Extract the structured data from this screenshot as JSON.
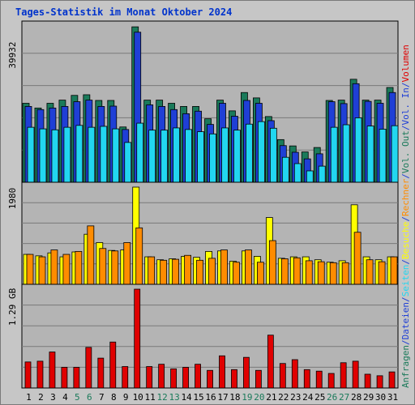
{
  "title": "Tages-Statistik im Monat Oktober 2024",
  "chart_data": [
    {
      "type": "bar",
      "panel": "top",
      "ytick_label": "39932",
      "ymax": 50000,
      "categories": [
        "1",
        "2",
        "3",
        "4",
        "5",
        "6",
        "7",
        "8",
        "9",
        "10",
        "11",
        "12",
        "13",
        "14",
        "15",
        "16",
        "17",
        "18",
        "19",
        "20",
        "21",
        "22",
        "23",
        "24",
        "25",
        "26",
        "27",
        "28",
        "29",
        "30",
        "31"
      ],
      "weekend_days": [
        "5",
        "6",
        "12",
        "13",
        "19",
        "20",
        "26",
        "27"
      ],
      "series": [
        {
          "name": "Anfragen",
          "color": "#1a7a5a",
          "values": [
            25000,
            23500,
            25000,
            26000,
            27500,
            27700,
            25900,
            25900,
            17500,
            49200,
            26000,
            26000,
            25000,
            24000,
            24000,
            20100,
            26000,
            22600,
            28400,
            26700,
            20800,
            13500,
            11500,
            9600,
            11000,
            25900,
            26000,
            32600,
            26000,
            26000,
            30000
          ]
        },
        {
          "name": "Dateien",
          "color": "#1f3fd6",
          "values": [
            24000,
            23000,
            23500,
            24000,
            25500,
            26000,
            24000,
            24100,
            16700,
            47500,
            24500,
            24000,
            23000,
            21700,
            22500,
            18300,
            25000,
            20900,
            25900,
            25000,
            19500,
            11600,
            9500,
            7400,
            9000,
            25500,
            24900,
            31200,
            25600,
            25000,
            28400
          ]
        },
        {
          "name": "Seiten",
          "color": "#22d6f0",
          "values": [
            17400,
            16900,
            16600,
            17400,
            18000,
            17400,
            17700,
            16900,
            12600,
            18700,
            16500,
            16500,
            17200,
            16700,
            16000,
            15300,
            17200,
            16500,
            18400,
            19200,
            17100,
            7900,
            5900,
            3600,
            5100,
            17400,
            18200,
            20400,
            17800,
            16800,
            17900
          ]
        },
        {
          "name": "Besuche",
          "color": "#ffff00",
          "values": [
            610,
            580,
            640,
            560,
            660,
            1020,
            850,
            690,
            700,
            1980,
            560,
            500,
            520,
            570,
            550,
            670,
            680,
            470,
            680,
            570,
            1360,
            530,
            560,
            560,
            500,
            450,
            480,
            1620,
            560,
            500,
            560
          ]
        },
        {
          "name": "Rechner",
          "color": "#ff8c00",
          "values": [
            610,
            560,
            700,
            610,
            670,
            1190,
            730,
            680,
            850,
            1150,
            560,
            490,
            510,
            590,
            490,
            530,
            700,
            450,
            700,
            450,
            890,
            520,
            540,
            480,
            460,
            440,
            440,
            1060,
            500,
            460,
            560
          ]
        }
      ],
      "side_labels": [
        {
          "text": "Anfragen",
          "color": "#1a7a5a"
        },
        {
          "text": "/",
          "color": "#1f3fd6"
        },
        {
          "text": "Dateien",
          "color": "#1f3fd6"
        },
        {
          "text": "/",
          "color": "#1f3fd6"
        },
        {
          "text": "Seiten",
          "color": "#22d6f0"
        },
        {
          "text": "/",
          "color": "#1f3fd6"
        },
        {
          "text": "Besuche",
          "color": "#ffff00"
        },
        {
          "text": "/",
          "color": "#1f3fd6"
        },
        {
          "text": "Rechner",
          "color": "#ff8c00"
        },
        {
          "text": "/",
          "color": "#1f3fd6"
        },
        {
          "text": "Vol. Out",
          "color": "#1a7a5a"
        },
        {
          "text": "/",
          "color": "#1f3fd6"
        },
        {
          "text": "Vol. In",
          "color": "#1f3fd6"
        },
        {
          "text": "/",
          "color": "#1f3fd6"
        },
        {
          "text": "Volumen",
          "color": "#e00000"
        }
      ]
    },
    {
      "type": "bar",
      "panel": "middle",
      "ytick_label": "1980",
      "ymax": 1980
    },
    {
      "type": "bar",
      "panel": "bottom",
      "ytick_label": "1.29 GB",
      "ymax": 1.29,
      "series": [
        {
          "name": "Volumen",
          "color": "#e00000",
          "values": [
            0.34,
            0.35,
            0.47,
            0.27,
            0.27,
            0.53,
            0.39,
            0.6,
            0.28,
            1.29,
            0.28,
            0.31,
            0.25,
            0.27,
            0.31,
            0.23,
            0.42,
            0.24,
            0.4,
            0.23,
            0.69,
            0.32,
            0.37,
            0.24,
            0.22,
            0.19,
            0.33,
            0.35,
            0.18,
            0.16,
            0.21
          ]
        }
      ]
    }
  ],
  "colors": {
    "plot_bg": "#b4b4b4",
    "frame_bg": "#c6c6c6",
    "grid": "#7a7a7a",
    "axis": "#000000",
    "weekday_label": "#000000",
    "weekend_label": "#1a7a5a"
  }
}
